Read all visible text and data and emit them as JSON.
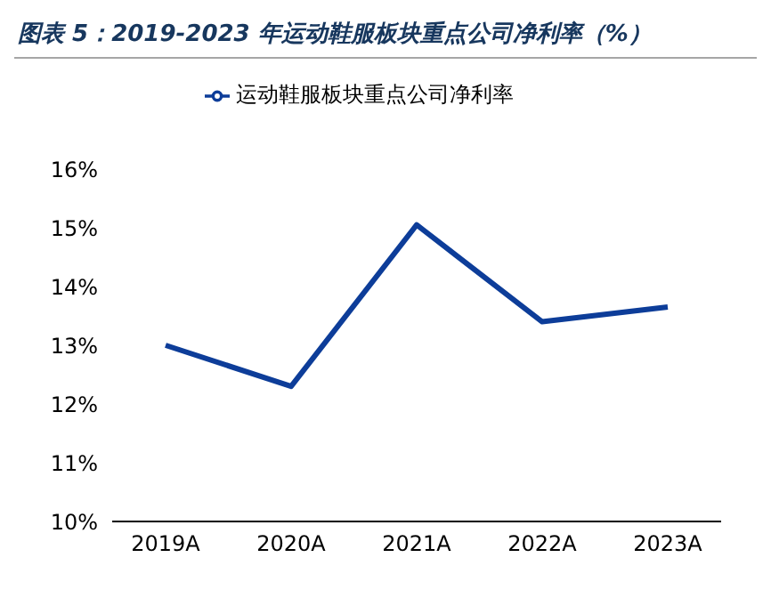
{
  "chart_data": {
    "type": "line",
    "title": "图表 5：2019-2023 年运动鞋服板块重点公司净利率（%）",
    "categories": [
      "2019A",
      "2020A",
      "2021A",
      "2022A",
      "2023A"
    ],
    "series": [
      {
        "name": "运动鞋服板块重点公司净利率",
        "color": "#0d3d99",
        "values": [
          13.0,
          12.3,
          15.05,
          13.4,
          13.65
        ]
      }
    ],
    "ylim": [
      10,
      16
    ],
    "yticks": [
      {
        "value": 10,
        "label": "10%"
      },
      {
        "value": 11,
        "label": "11%"
      },
      {
        "value": 12,
        "label": "12%"
      },
      {
        "value": 13,
        "label": "13%"
      },
      {
        "value": 14,
        "label": "14%"
      },
      {
        "value": 15,
        "label": "15%"
      },
      {
        "value": 16,
        "label": "16%"
      }
    ],
    "grid": false,
    "legend": "top",
    "marker": "none",
    "line_style": "solid"
  }
}
